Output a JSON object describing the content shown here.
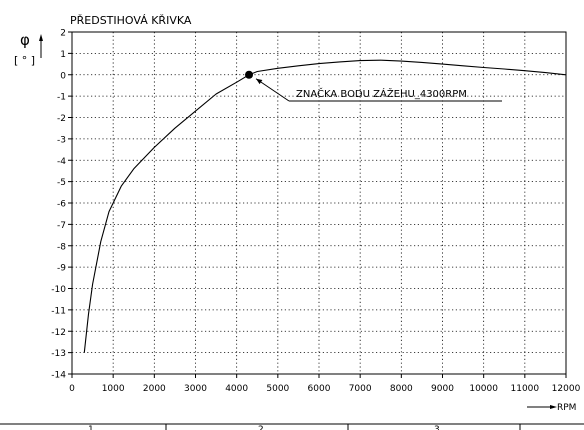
{
  "chart_data": {
    "type": "line",
    "title": "PŘEDSTIHOVÁ KŘIVKA",
    "ylabel_symbol": "φ",
    "ylabel_unit": "[ ° ]",
    "xlabel": "RPM",
    "xlim": [
      0,
      12000
    ],
    "ylim": [
      -14,
      2
    ],
    "x_ticks": [
      0,
      1000,
      2000,
      3000,
      4000,
      5000,
      6000,
      7000,
      8000,
      9000,
      10000,
      11000,
      12000
    ],
    "y_ticks": [
      2,
      1,
      0,
      -1,
      -2,
      -3,
      -4,
      -5,
      -6,
      -7,
      -8,
      -9,
      -10,
      -11,
      -12,
      -13,
      -14
    ],
    "grid": true,
    "series": [
      {
        "x": [
          300,
          400,
          500,
          700,
          900,
          1200,
          1500,
          2000,
          2500,
          3000,
          3500,
          4000,
          4300,
          4500,
          5000,
          5500,
          6000,
          6500,
          7000,
          7500,
          8000,
          8500,
          9000,
          9500,
          10000,
          10500,
          11000,
          11500,
          12000
        ],
        "y": [
          -13.0,
          -11.2,
          -9.8,
          -7.8,
          -6.4,
          -5.2,
          -4.4,
          -3.4,
          -2.5,
          -1.7,
          -0.9,
          -0.35,
          0.0,
          0.15,
          0.3,
          0.42,
          0.52,
          0.6,
          0.66,
          0.68,
          0.64,
          0.58,
          0.5,
          0.42,
          0.34,
          0.27,
          0.19,
          0.1,
          0.0
        ]
      }
    ],
    "annotations": [
      {
        "x": 4300,
        "y": 0,
        "text": "ZNAČKA BODU ZÁŽEHU_4300RPM"
      }
    ]
  },
  "footer_labels": [
    "1",
    "2",
    "3"
  ]
}
